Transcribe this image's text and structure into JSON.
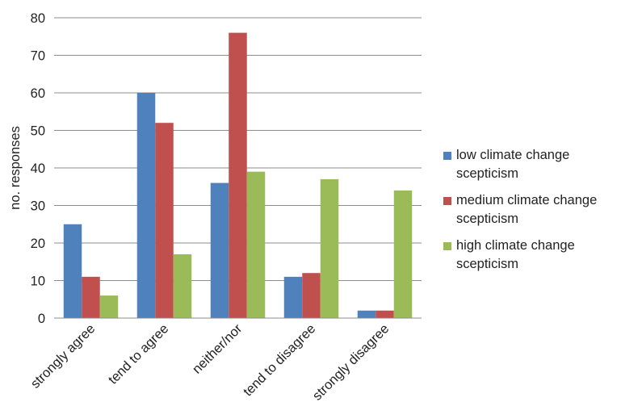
{
  "chart_data": {
    "type": "bar",
    "ylabel": "no. responses",
    "xlabel": "",
    "ylim": [
      0,
      80
    ],
    "yticks": [
      0,
      10,
      20,
      30,
      40,
      50,
      60,
      70,
      80
    ],
    "grid": true,
    "legend_position": "right",
    "categories": [
      "strongly agree",
      "tend to agree",
      "neither/nor",
      "tend to disagree",
      "strongly disagree"
    ],
    "series": [
      {
        "name": "low climate change scepticism",
        "color": "#4f81bd",
        "values": [
          25,
          60,
          36,
          11,
          2
        ]
      },
      {
        "name": "medium climate change scepticism",
        "color": "#c0504d",
        "values": [
          11,
          52,
          76,
          12,
          2
        ]
      },
      {
        "name": "high climate change scepticism",
        "color": "#9bbb59",
        "values": [
          6,
          17,
          39,
          37,
          34
        ]
      }
    ]
  }
}
